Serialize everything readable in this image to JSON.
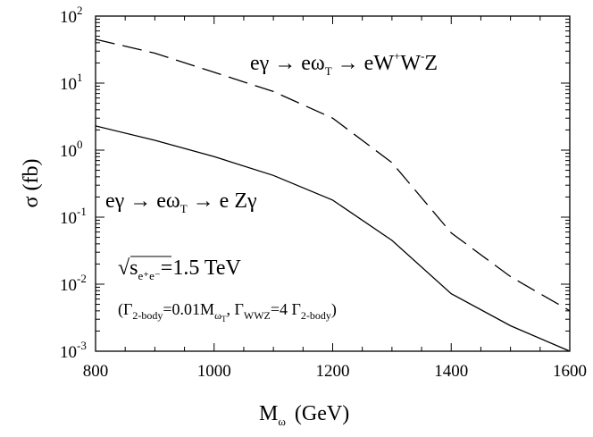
{
  "chart_data": {
    "type": "line",
    "xlabel": "M",
    "xlabel_sub": "ω",
    "xlabel_unit": "(GeV)",
    "ylabel": "σ (fb)",
    "xlim": [
      800,
      1600
    ],
    "ylim_log10": [
      -3,
      2
    ],
    "yscale": "log",
    "x_ticks": [
      800,
      1000,
      1200,
      1400,
      1600
    ],
    "y_tick_labels": [
      {
        "base": "10",
        "exp": "-3",
        "log": -3
      },
      {
        "base": "10",
        "exp": "-2",
        "log": -2
      },
      {
        "base": "10",
        "exp": "-1",
        "log": -1
      },
      {
        "base": "10",
        "exp": "0",
        "log": 0
      },
      {
        "base": "10",
        "exp": "1",
        "log": 1
      },
      {
        "base": "10",
        "exp": "2",
        "log": 2
      }
    ],
    "series": [
      {
        "name": "eγ → eω_T → eW+W-Z",
        "style": "dashed",
        "x": [
          800,
          900,
          1000,
          1100,
          1200,
          1300,
          1400,
          1500,
          1600
        ],
        "y": [
          45,
          28,
          14.5,
          7.5,
          3.0,
          0.65,
          0.058,
          0.013,
          0.004
        ]
      },
      {
        "name": "eγ → eω_T → e Zγ",
        "style": "solid",
        "x": [
          800,
          900,
          1000,
          1100,
          1200,
          1300,
          1400,
          1500,
          1600
        ],
        "y": [
          2.3,
          1.4,
          0.8,
          0.42,
          0.18,
          0.045,
          0.0072,
          0.0024,
          0.001
        ]
      }
    ]
  },
  "annotations": {
    "dashed_label": {
      "a": "eγ → eω",
      "a_sub": "T",
      "b": " → eW",
      "b_sup1": "+",
      "c": "W",
      "c_sup": "-",
      "d": "Z"
    },
    "solid_label": {
      "a": "eγ → eω",
      "a_sub": "T",
      "b": " → e Zγ"
    },
    "energy": {
      "sqrt": "√",
      "s": "s",
      "sub": "e⁺e⁻",
      "rest": "=1.5 TeV"
    },
    "widths": {
      "p1": "(Γ",
      "p1_sub": "2-body",
      "p2": "=0.01M",
      "p2_sub": "ω",
      "p2_subsub": "T",
      "p3": ", Γ",
      "p3_sub": "WWZ",
      "p4": "=4 Γ",
      "p4_sub": "2-body",
      "p5": ")"
    }
  }
}
